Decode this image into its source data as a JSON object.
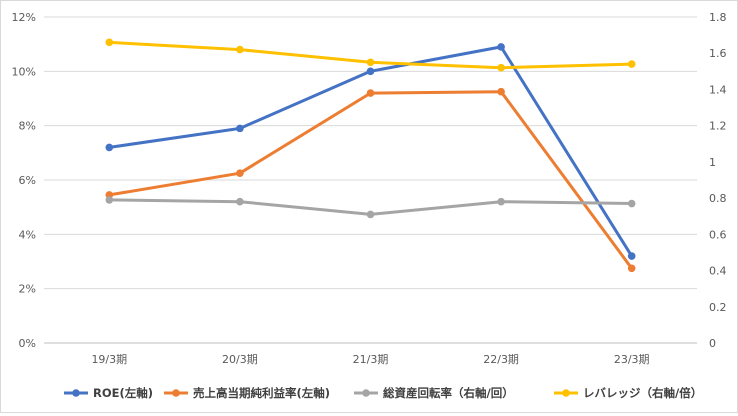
{
  "chart_data": {
    "type": "line",
    "categories": [
      "19/3期",
      "20/3期",
      "21/3期",
      "22/3期",
      "23/3期"
    ],
    "y_left": {
      "ticks": [
        "0%",
        "2%",
        "4%",
        "6%",
        "8%",
        "10%",
        "12%"
      ],
      "min": 0,
      "max": 12
    },
    "y_right": {
      "ticks": [
        "0",
        "0.2",
        "0.4",
        "0.6",
        "0.8",
        "1",
        "1.2",
        "1.4",
        "1.6",
        "1.8"
      ],
      "min": 0,
      "max": 1.8
    },
    "grid": true,
    "legend_position": "bottom",
    "series": [
      {
        "name": "ROE(左軸)",
        "axis": "left",
        "color": "#4472C4",
        "values": [
          7.2,
          7.9,
          10.0,
          10.9,
          3.2
        ]
      },
      {
        "name": "売上高当期純利益率(左軸)",
        "axis": "left",
        "color": "#ED7D31",
        "values": [
          5.45,
          6.25,
          9.2,
          9.25,
          2.75
        ]
      },
      {
        "name": "総資産回転率（右軸/回）",
        "axis": "right",
        "color": "#A5A5A5",
        "values": [
          0.79,
          0.78,
          0.71,
          0.78,
          0.77
        ]
      },
      {
        "name": "レバレッジ（右軸/倍）",
        "axis": "right",
        "color": "#FFC000",
        "values": [
          1.66,
          1.62,
          1.55,
          1.52,
          1.54
        ]
      }
    ]
  }
}
